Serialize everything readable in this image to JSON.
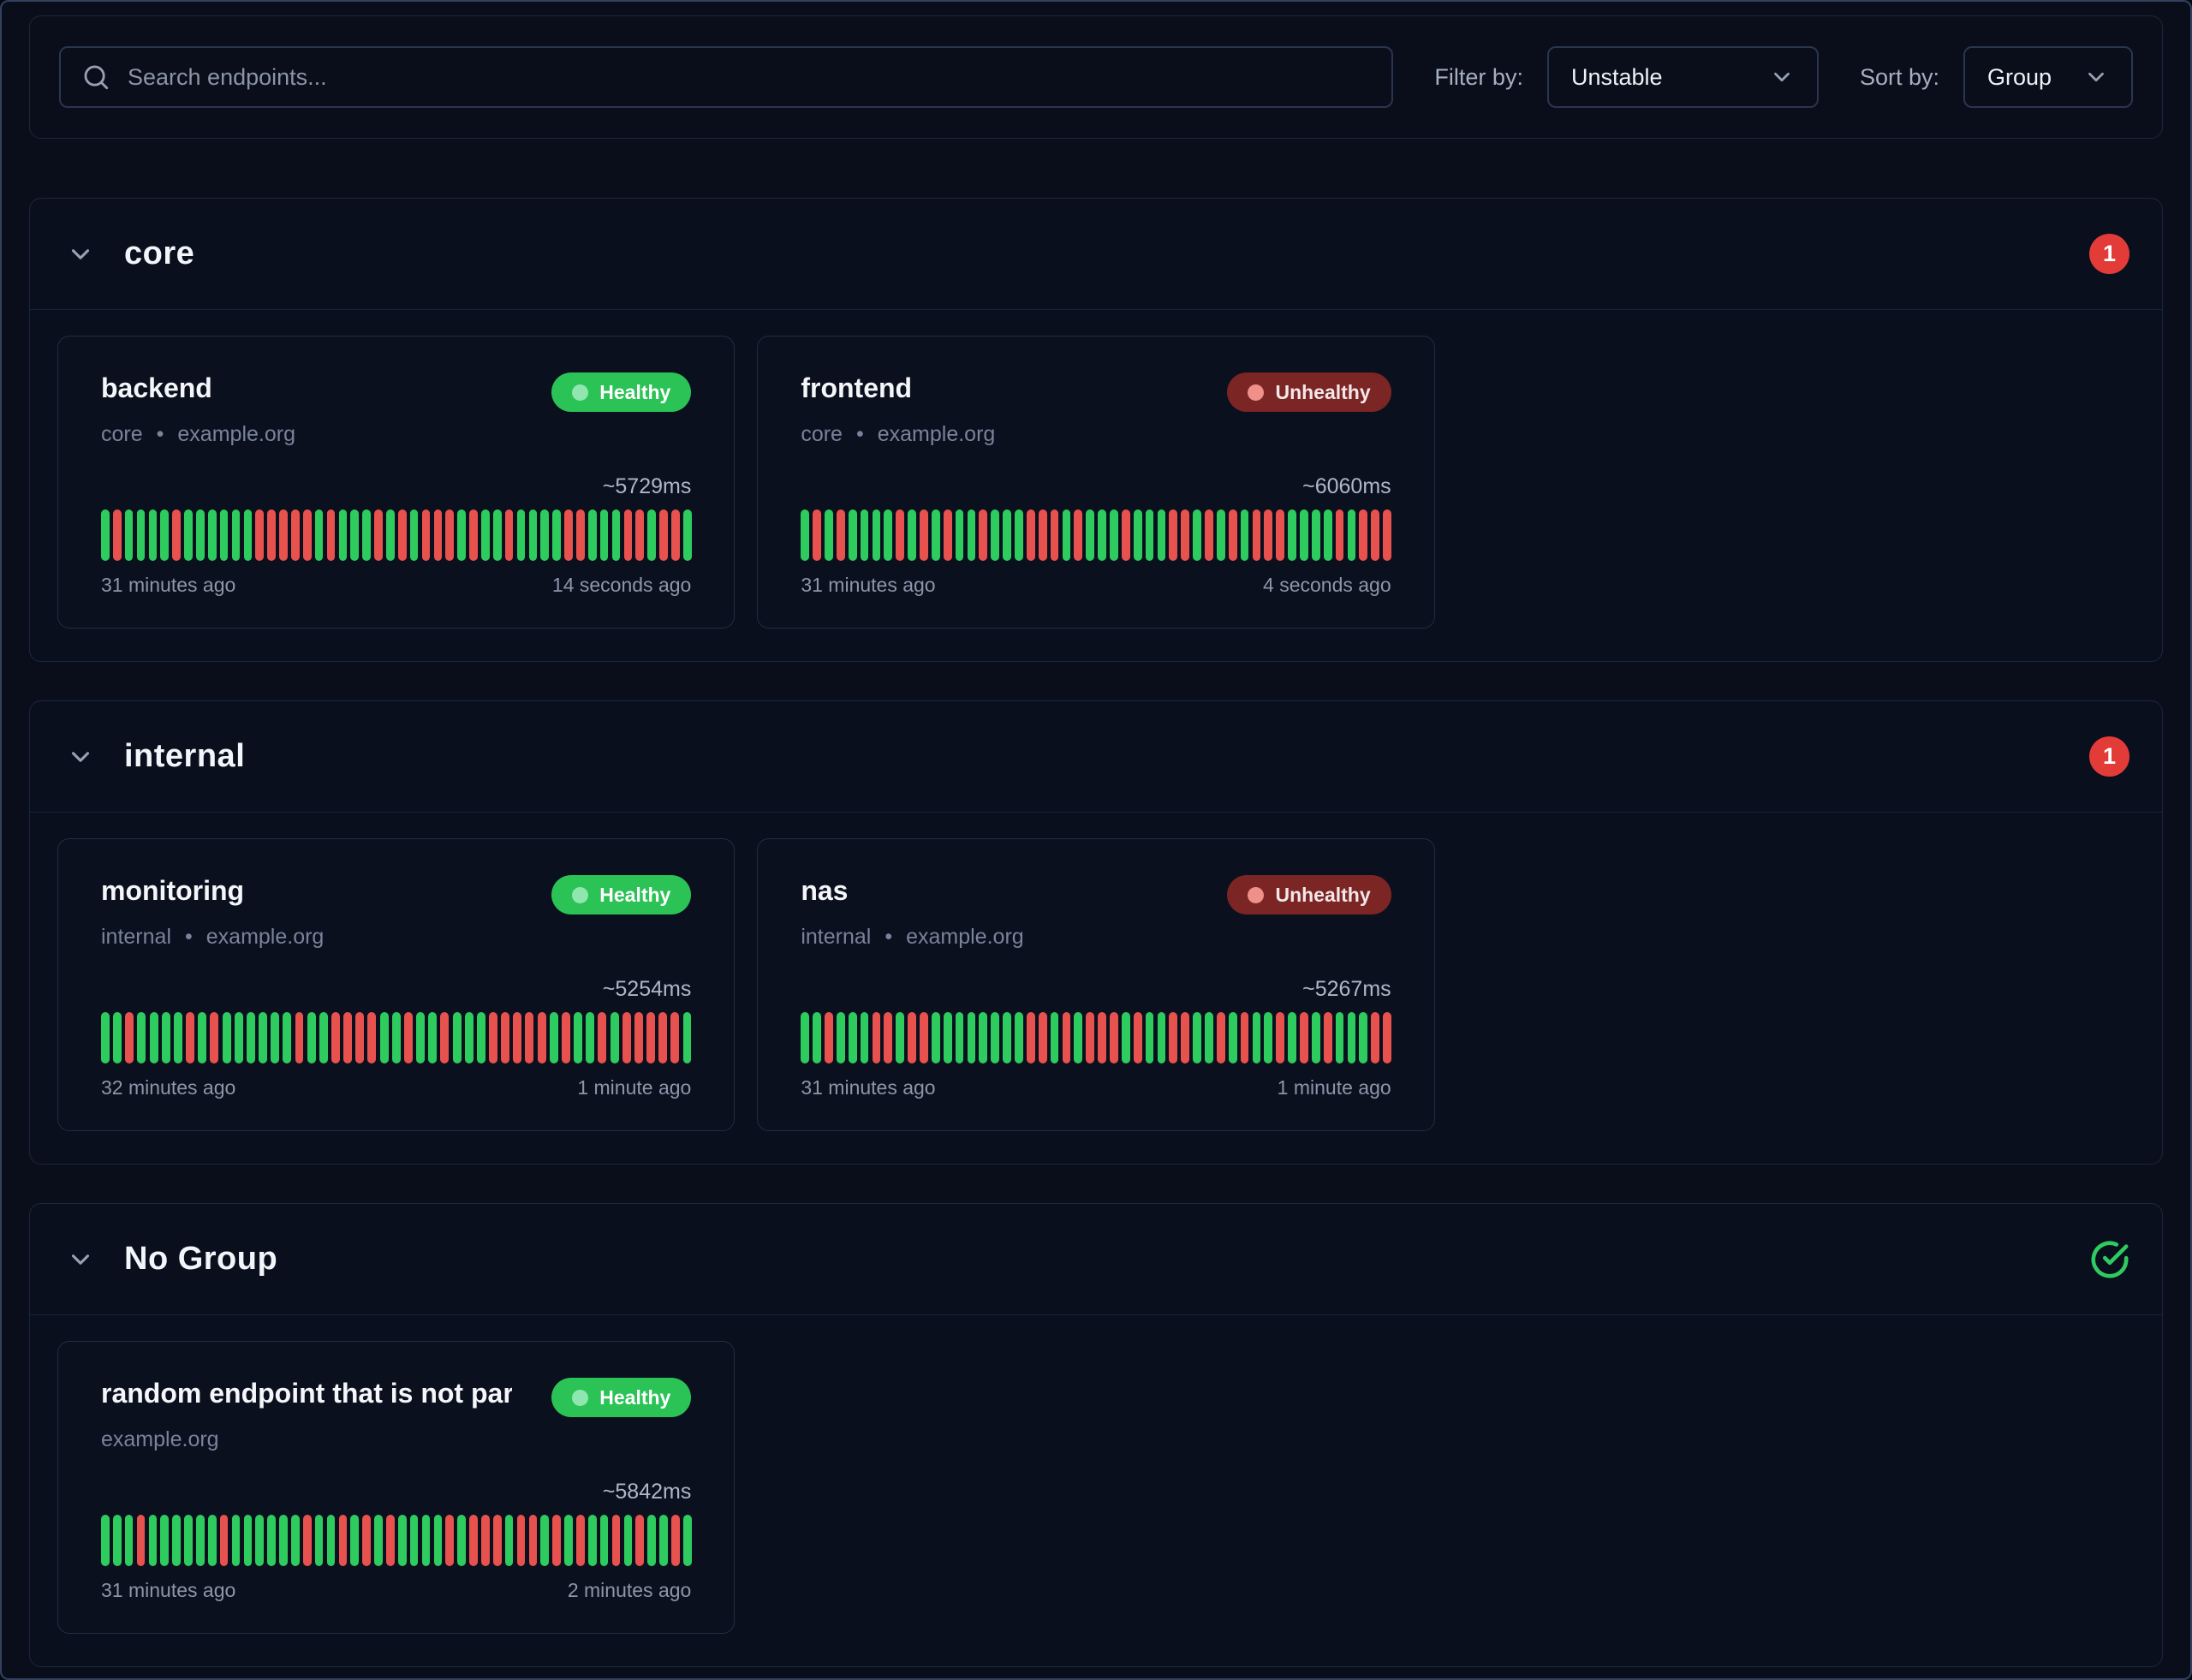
{
  "colors": {
    "page_bg": "#0a0e1b",
    "bar_green": "#2ecc5e",
    "bar_red": "#e8524e",
    "healthy_badge_green": "#2bc356",
    "count_badge_red": "#e23b38"
  },
  "separator": "•",
  "toolbar": {
    "search_placeholder": "Search endpoints...",
    "filter_label": "Filter by:",
    "filter_value": "Unstable",
    "sort_label": "Sort by:",
    "sort_value": "Group"
  },
  "groups": [
    {
      "name": "core",
      "indicator": {
        "type": "count",
        "value": "1"
      },
      "endpoints": [
        {
          "name": "backend",
          "status": "Healthy",
          "group": "core",
          "host": "example.org",
          "latency": "~5729ms",
          "range_start": "31 minutes ago",
          "range_end": "14 seconds ago",
          "history": "GRGGGGRGGGGGGRRRRRGRGGGRGRGRRRGRGGRGGGGRRGGGRRGRRG"
        },
        {
          "name": "frontend",
          "status": "Unhealthy",
          "group": "core",
          "host": "example.org",
          "latency": "~6060ms",
          "range_start": "31 minutes ago",
          "range_end": "4 seconds ago",
          "history": "GRGRGGGGRGRGRGGRGGGRRRGRGGGRGGGRRGRGRGRRRGGGGRGRRR"
        }
      ]
    },
    {
      "name": "internal",
      "indicator": {
        "type": "count",
        "value": "1"
      },
      "endpoints": [
        {
          "name": "monitoring",
          "status": "Healthy",
          "group": "internal",
          "host": "example.org",
          "latency": "~5254ms",
          "range_start": "32 minutes ago",
          "range_end": "1 minute ago",
          "history": "GGRGGGGRGRGGGGGGRGGRRRRGGRGGRGGGRRRRRGRGGRGRRRRRG"
        },
        {
          "name": "nas",
          "status": "Unhealthy",
          "group": "internal",
          "host": "example.org",
          "latency": "~5267ms",
          "range_start": "31 minutes ago",
          "range_end": "1 minute ago",
          "history": "GGRGGGRRGRRGGGGGGGGRRGRGRRRGRGGRRGGRGRGGRGRGRGGGRR"
        }
      ]
    },
    {
      "name": "No Group",
      "indicator": {
        "type": "healthy"
      },
      "endpoints": [
        {
          "name": "random endpoint that is not part...",
          "status": "Healthy",
          "group": "",
          "host": "example.org",
          "latency": "~5842ms",
          "range_start": "31 minutes ago",
          "range_end": "2 minutes ago",
          "history": "GGGRGGGGGGRGGGGGGRGGRGRGRGGGGRGRRRGRRGRGRGGRGRGGRG"
        }
      ]
    }
  ]
}
